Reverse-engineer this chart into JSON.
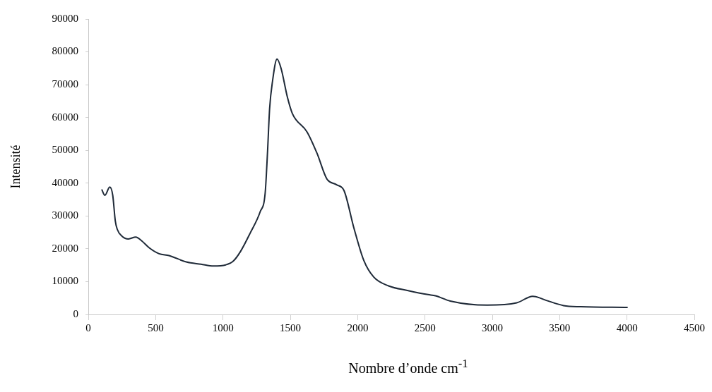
{
  "chart_data": {
    "type": "line",
    "xlabel": "Nombre d’onde cm$^{-1}$",
    "ylabel": "Intensité",
    "x": [
      99,
      123,
      159,
      181,
      200,
      214,
      251,
      297,
      352,
      397,
      452,
      525,
      599,
      727,
      837,
      929,
      1020,
      1075,
      1130,
      1203,
      1276,
      1313,
      1331,
      1346,
      1368,
      1401,
      1432,
      1478,
      1515,
      1624,
      1698,
      1771,
      1844,
      1899,
      1972,
      2046,
      2119,
      2229,
      2375,
      2522,
      2577,
      2687,
      2962,
      3181,
      3300,
      3401,
      3529,
      3657,
      4005
    ],
    "series": [
      {
        "color": "#1f2a38",
        "values": [
          38100,
          36300,
          38800,
          36300,
          28500,
          26000,
          23800,
          23000,
          23600,
          22400,
          20300,
          18500,
          17950,
          16000,
          15300,
          14750,
          15100,
          16200,
          19200,
          24900,
          31300,
          37000,
          49900,
          62700,
          71200,
          77800,
          74800,
          66200,
          61200,
          55600,
          49100,
          41300,
          39500,
          37700,
          26300,
          16400,
          11400,
          8700,
          7270,
          6050,
          5700,
          4100,
          2850,
          3550,
          5550,
          4270,
          2700,
          2350,
          2140
        ]
      }
    ],
    "xlim": [
      0,
      4500
    ],
    "xticks": [
      0,
      500,
      1000,
      1500,
      2000,
      2500,
      3000,
      3500,
      4000,
      4500
    ],
    "ylim": [
      0,
      90000
    ],
    "yticks": [
      0,
      10000,
      20000,
      30000,
      40000,
      50000,
      60000,
      70000,
      80000,
      90000
    ],
    "grid": false,
    "legend": false,
    "marker": "none",
    "line_style": "solid"
  }
}
